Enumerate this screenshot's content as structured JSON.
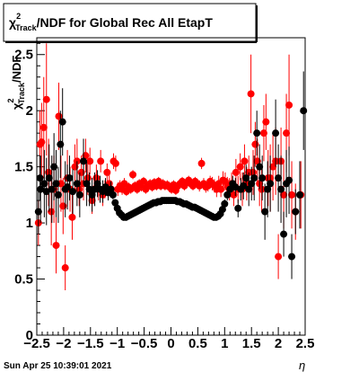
{
  "chart_data": {
    "type": "scatter",
    "title_main": "/NDF for Global Rec All EtapT",
    "title_chi": "χ",
    "title_sup": "2",
    "title_sub": "Track",
    "ylabel_chi": "χ",
    "ylabel_sup": "2",
    "ylabel_sub": "Track",
    "ylabel_tail": "/NDF",
    "xlabel": "η",
    "xlim": [
      -2.5,
      2.5
    ],
    "ylim": [
      0,
      2.65
    ],
    "xticks": [
      "−2.5",
      "−2",
      "−1.5",
      "−1",
      "−0.5",
      "0",
      "0.5",
      "1",
      "1.5",
      "2",
      "2.5"
    ],
    "yticks": [
      "0",
      "0.5",
      "1",
      "1.5",
      "2",
      "2.5"
    ],
    "grid": false,
    "series": [
      {
        "color": "#ff0000",
        "points": [
          [
            -2.47,
            1.0,
            0.2
          ],
          [
            -2.44,
            1.7,
            0.3
          ],
          [
            -2.41,
            1.72,
            0.35
          ],
          [
            -2.37,
            1.85,
            0.45
          ],
          [
            -2.32,
            2.1,
            0.5
          ],
          [
            -2.28,
            1.45,
            0.3
          ],
          [
            -2.23,
            1.1,
            0.3
          ],
          [
            -2.18,
            1.3,
            0.3
          ],
          [
            -2.14,
            0.8,
            0.25
          ],
          [
            -2.09,
            1.95,
            0.3
          ],
          [
            -2.05,
            1.35,
            0.25
          ],
          [
            -2.01,
            1.15,
            0.25
          ],
          [
            -1.97,
            0.6,
            0.2
          ],
          [
            -1.93,
            1.4,
            0.25
          ],
          [
            -1.88,
            1.3,
            0.2
          ],
          [
            -1.84,
            1.05,
            0.2
          ],
          [
            -1.79,
            1.5,
            0.2
          ],
          [
            -1.75,
            1.55,
            0.2
          ],
          [
            -1.71,
            1.3,
            0.15
          ],
          [
            -1.67,
            1.45,
            0.15
          ],
          [
            -1.63,
            1.35,
            0.15
          ],
          [
            -1.59,
            1.6,
            0.15
          ],
          [
            -1.55,
            1.4,
            0.15
          ],
          [
            -1.51,
            1.55,
            0.12
          ],
          [
            -1.47,
            1.2,
            0.12
          ],
          [
            -1.43,
            1.3,
            0.12
          ],
          [
            -1.39,
            1.4,
            0.12
          ],
          [
            -1.35,
            1.3,
            0.1
          ],
          [
            -1.31,
            1.55,
            0.1
          ],
          [
            -1.27,
            1.25,
            0.1
          ],
          [
            -1.23,
            1.3,
            0.08
          ],
          [
            -1.19,
            1.45,
            0.08
          ],
          [
            -1.15,
            1.35,
            0.08
          ],
          [
            -1.11,
            1.3,
            0.07
          ],
          [
            -1.07,
            1.55,
            0.07
          ],
          [
            -1.03,
            1.53,
            0.07
          ],
          [
            -0.99,
            1.3,
            0.06
          ],
          [
            -0.95,
            1.33,
            0.05
          ],
          [
            -0.91,
            1.3,
            0.05
          ],
          [
            -0.87,
            1.35,
            0.05
          ],
          [
            -0.83,
            1.28,
            0.04
          ],
          [
            -0.79,
            1.32,
            0.04
          ],
          [
            -0.75,
            1.3,
            0.04
          ],
          [
            -0.71,
            1.43,
            0.04
          ],
          [
            -0.67,
            1.33,
            0.04
          ],
          [
            -0.63,
            1.3,
            0.04
          ],
          [
            -0.59,
            1.35,
            0.04
          ],
          [
            -0.55,
            1.32,
            0.04
          ],
          [
            -0.51,
            1.37,
            0.04
          ],
          [
            -0.47,
            1.3,
            0.04
          ],
          [
            -0.43,
            1.33,
            0.04
          ],
          [
            -0.39,
            1.35,
            0.04
          ],
          [
            -0.35,
            1.32,
            0.04
          ],
          [
            -0.31,
            1.36,
            0.04
          ],
          [
            -0.27,
            1.33,
            0.04
          ],
          [
            -0.23,
            1.37,
            0.04
          ],
          [
            -0.19,
            1.33,
            0.04
          ],
          [
            -0.15,
            1.35,
            0.04
          ],
          [
            -0.11,
            1.33,
            0.04
          ],
          [
            -0.07,
            1.34,
            0.04
          ],
          [
            -0.03,
            1.32,
            0.04
          ],
          [
            0.01,
            1.3,
            0.04
          ],
          [
            0.05,
            1.34,
            0.04
          ],
          [
            0.09,
            1.29,
            0.04
          ],
          [
            0.13,
            1.33,
            0.04
          ],
          [
            0.17,
            1.35,
            0.04
          ],
          [
            0.21,
            1.37,
            0.04
          ],
          [
            0.25,
            1.33,
            0.04
          ],
          [
            0.29,
            1.36,
            0.04
          ],
          [
            0.33,
            1.38,
            0.04
          ],
          [
            0.37,
            1.35,
            0.04
          ],
          [
            0.41,
            1.33,
            0.04
          ],
          [
            0.45,
            1.37,
            0.04
          ],
          [
            0.49,
            1.35,
            0.04
          ],
          [
            0.53,
            1.33,
            0.05
          ],
          [
            0.57,
            1.53,
            0.05
          ],
          [
            0.61,
            1.35,
            0.05
          ],
          [
            0.65,
            1.32,
            0.05
          ],
          [
            0.69,
            1.33,
            0.05
          ],
          [
            0.73,
            1.37,
            0.05
          ],
          [
            0.77,
            1.35,
            0.06
          ],
          [
            0.81,
            1.33,
            0.06
          ],
          [
            0.85,
            1.3,
            0.07
          ],
          [
            0.89,
            1.35,
            0.07
          ],
          [
            0.93,
            1.3,
            0.07
          ],
          [
            0.97,
            1.38,
            0.08
          ],
          [
            1.01,
            1.37,
            0.08
          ],
          [
            1.05,
            1.33,
            0.08
          ],
          [
            1.09,
            1.3,
            0.1
          ],
          [
            1.13,
            1.35,
            0.1
          ],
          [
            1.17,
            1.25,
            0.1
          ],
          [
            1.21,
            1.45,
            0.12
          ],
          [
            1.25,
            1.3,
            0.12
          ],
          [
            1.29,
            1.5,
            0.12
          ],
          [
            1.33,
            1.3,
            0.15
          ],
          [
            1.37,
            1.55,
            0.15
          ],
          [
            1.41,
            1.35,
            0.15
          ],
          [
            1.45,
            1.45,
            0.15
          ],
          [
            1.49,
            2.15,
            0.35
          ],
          [
            1.53,
            1.45,
            0.2
          ],
          [
            1.57,
            1.7,
            0.2
          ],
          [
            1.61,
            1.55,
            0.2
          ],
          [
            1.65,
            1.35,
            0.2
          ],
          [
            1.69,
            1.3,
            0.2
          ],
          [
            1.73,
            1.8,
            0.25
          ],
          [
            1.77,
            1.9,
            0.25
          ],
          [
            1.81,
            1.4,
            0.25
          ],
          [
            1.85,
            1.4,
            0.3
          ],
          [
            1.9,
            1.5,
            0.3
          ],
          [
            1.95,
            1.55,
            0.3
          ],
          [
            2.0,
            0.7,
            0.2
          ],
          [
            2.05,
            1.55,
            0.3
          ],
          [
            2.1,
            1.25,
            0.3
          ],
          [
            2.15,
            1.8,
            0.35
          ],
          [
            2.2,
            2.05,
            0.45
          ],
          [
            2.25,
            1.25,
            0.3
          ],
          [
            2.32,
            1.1,
            0.25
          ],
          [
            2.42,
            1.25,
            0.3
          ]
        ]
      },
      {
        "color": "#000000",
        "points": [
          [
            -2.47,
            1.1,
            0.2
          ],
          [
            -2.43,
            1.3,
            0.3
          ],
          [
            -2.36,
            1.35,
            0.3
          ],
          [
            -2.32,
            1.28,
            0.3
          ],
          [
            -2.27,
            1.4,
            0.3
          ],
          [
            -2.22,
            1.3,
            0.3
          ],
          [
            -2.18,
            1.5,
            0.3
          ],
          [
            -2.14,
            1.35,
            0.3
          ],
          [
            -2.1,
            1.25,
            0.25
          ],
          [
            -2.06,
            1.7,
            0.3
          ],
          [
            -2.02,
            1.9,
            0.3
          ],
          [
            -1.97,
            1.3,
            0.25
          ],
          [
            -1.93,
            1.32,
            0.2
          ],
          [
            -1.89,
            1.4,
            0.2
          ],
          [
            -1.83,
            1.28,
            0.2
          ],
          [
            -1.75,
            1.35,
            0.2
          ],
          [
            -1.7,
            1.25,
            0.2
          ],
          [
            -1.63,
            1.55,
            0.2
          ],
          [
            -1.57,
            1.35,
            0.2
          ],
          [
            -1.52,
            1.3,
            0.15
          ],
          [
            -1.47,
            1.25,
            0.15
          ],
          [
            -1.42,
            1.3,
            0.15
          ],
          [
            -1.37,
            1.35,
            0.12
          ],
          [
            -1.32,
            1.3,
            0.12
          ],
          [
            -1.27,
            1.28,
            0.1
          ],
          [
            -1.22,
            1.32,
            0.08
          ],
          [
            -1.17,
            1.27,
            0.07
          ],
          [
            -1.12,
            1.3,
            0.07
          ],
          [
            -2.44,
            1.4,
            0.2
          ],
          [
            -1.08,
            1.25,
            0.04
          ],
          [
            -1.04,
            1.18,
            0.03
          ],
          [
            -1.0,
            1.13,
            0.03
          ],
          [
            -0.96,
            1.09,
            0.02
          ],
          [
            -0.92,
            1.07,
            0.02
          ],
          [
            -0.88,
            1.05,
            0.02
          ],
          [
            -0.84,
            1.05,
            0.02
          ],
          [
            -0.8,
            1.06,
            0.02
          ],
          [
            -0.76,
            1.07,
            0.02
          ],
          [
            -0.72,
            1.08,
            0.02
          ],
          [
            -0.68,
            1.09,
            0.02
          ],
          [
            -0.64,
            1.1,
            0.02
          ],
          [
            -0.6,
            1.11,
            0.02
          ],
          [
            -0.56,
            1.12,
            0.02
          ],
          [
            -0.52,
            1.13,
            0.02
          ],
          [
            -0.48,
            1.14,
            0.02
          ],
          [
            -0.44,
            1.15,
            0.02
          ],
          [
            -0.4,
            1.16,
            0.02
          ],
          [
            -0.36,
            1.17,
            0.02
          ],
          [
            -0.32,
            1.18,
            0.02
          ],
          [
            -0.28,
            1.18,
            0.02
          ],
          [
            -0.24,
            1.19,
            0.02
          ],
          [
            -0.2,
            1.19,
            0.02
          ],
          [
            -0.16,
            1.2,
            0.02
          ],
          [
            -0.12,
            1.2,
            0.02
          ],
          [
            -0.08,
            1.2,
            0.02
          ],
          [
            -0.04,
            1.2,
            0.02
          ],
          [
            0.0,
            1.2,
            0.02
          ],
          [
            0.04,
            1.2,
            0.02
          ],
          [
            0.08,
            1.2,
            0.02
          ],
          [
            0.12,
            1.19,
            0.02
          ],
          [
            0.16,
            1.19,
            0.02
          ],
          [
            0.2,
            1.18,
            0.02
          ],
          [
            0.24,
            1.17,
            0.02
          ],
          [
            0.28,
            1.17,
            0.02
          ],
          [
            0.32,
            1.16,
            0.02
          ],
          [
            0.36,
            1.15,
            0.02
          ],
          [
            0.4,
            1.14,
            0.02
          ],
          [
            0.44,
            1.14,
            0.02
          ],
          [
            0.48,
            1.13,
            0.02
          ],
          [
            0.52,
            1.12,
            0.02
          ],
          [
            0.56,
            1.11,
            0.02
          ],
          [
            0.6,
            1.1,
            0.02
          ],
          [
            0.64,
            1.09,
            0.02
          ],
          [
            0.68,
            1.08,
            0.02
          ],
          [
            0.72,
            1.07,
            0.02
          ],
          [
            0.76,
            1.06,
            0.02
          ],
          [
            0.8,
            1.05,
            0.02
          ],
          [
            0.84,
            1.05,
            0.02
          ],
          [
            0.88,
            1.06,
            0.02
          ],
          [
            0.92,
            1.08,
            0.03
          ],
          [
            0.96,
            1.12,
            0.03
          ],
          [
            1.0,
            1.17,
            0.04
          ],
          [
            1.05,
            1.25,
            0.05
          ],
          [
            1.1,
            1.3,
            0.07
          ],
          [
            1.15,
            1.35,
            0.07
          ],
          [
            1.2,
            1.32,
            0.08
          ],
          [
            1.25,
            1.13,
            0.08
          ],
          [
            1.3,
            1.3,
            0.1
          ],
          [
            1.35,
            1.33,
            0.12
          ],
          [
            1.4,
            1.4,
            0.12
          ],
          [
            1.45,
            1.3,
            0.15
          ],
          [
            1.5,
            1.35,
            0.15
          ],
          [
            1.55,
            1.4,
            0.2
          ],
          [
            1.6,
            1.8,
            0.2
          ],
          [
            1.65,
            1.5,
            0.2
          ],
          [
            1.7,
            1.4,
            0.2
          ],
          [
            1.75,
            1.1,
            0.25
          ],
          [
            1.8,
            1.3,
            0.25
          ],
          [
            1.85,
            1.35,
            0.25
          ],
          [
            1.95,
            1.8,
            0.3
          ],
          [
            2.0,
            1.4,
            0.3
          ],
          [
            2.05,
            1.3,
            0.3
          ],
          [
            2.1,
            0.9,
            0.2
          ],
          [
            2.15,
            1.35,
            0.3
          ],
          [
            2.2,
            1.38,
            0.3
          ],
          [
            2.25,
            0.7,
            0.2
          ],
          [
            2.32,
            1.1,
            0.2
          ],
          [
            2.4,
            1.25,
            0.3
          ],
          [
            2.47,
            2.0,
            0.35
          ]
        ]
      }
    ]
  },
  "footer": {
    "timestamp": "Sun Apr 25 10:39:01 2021"
  }
}
